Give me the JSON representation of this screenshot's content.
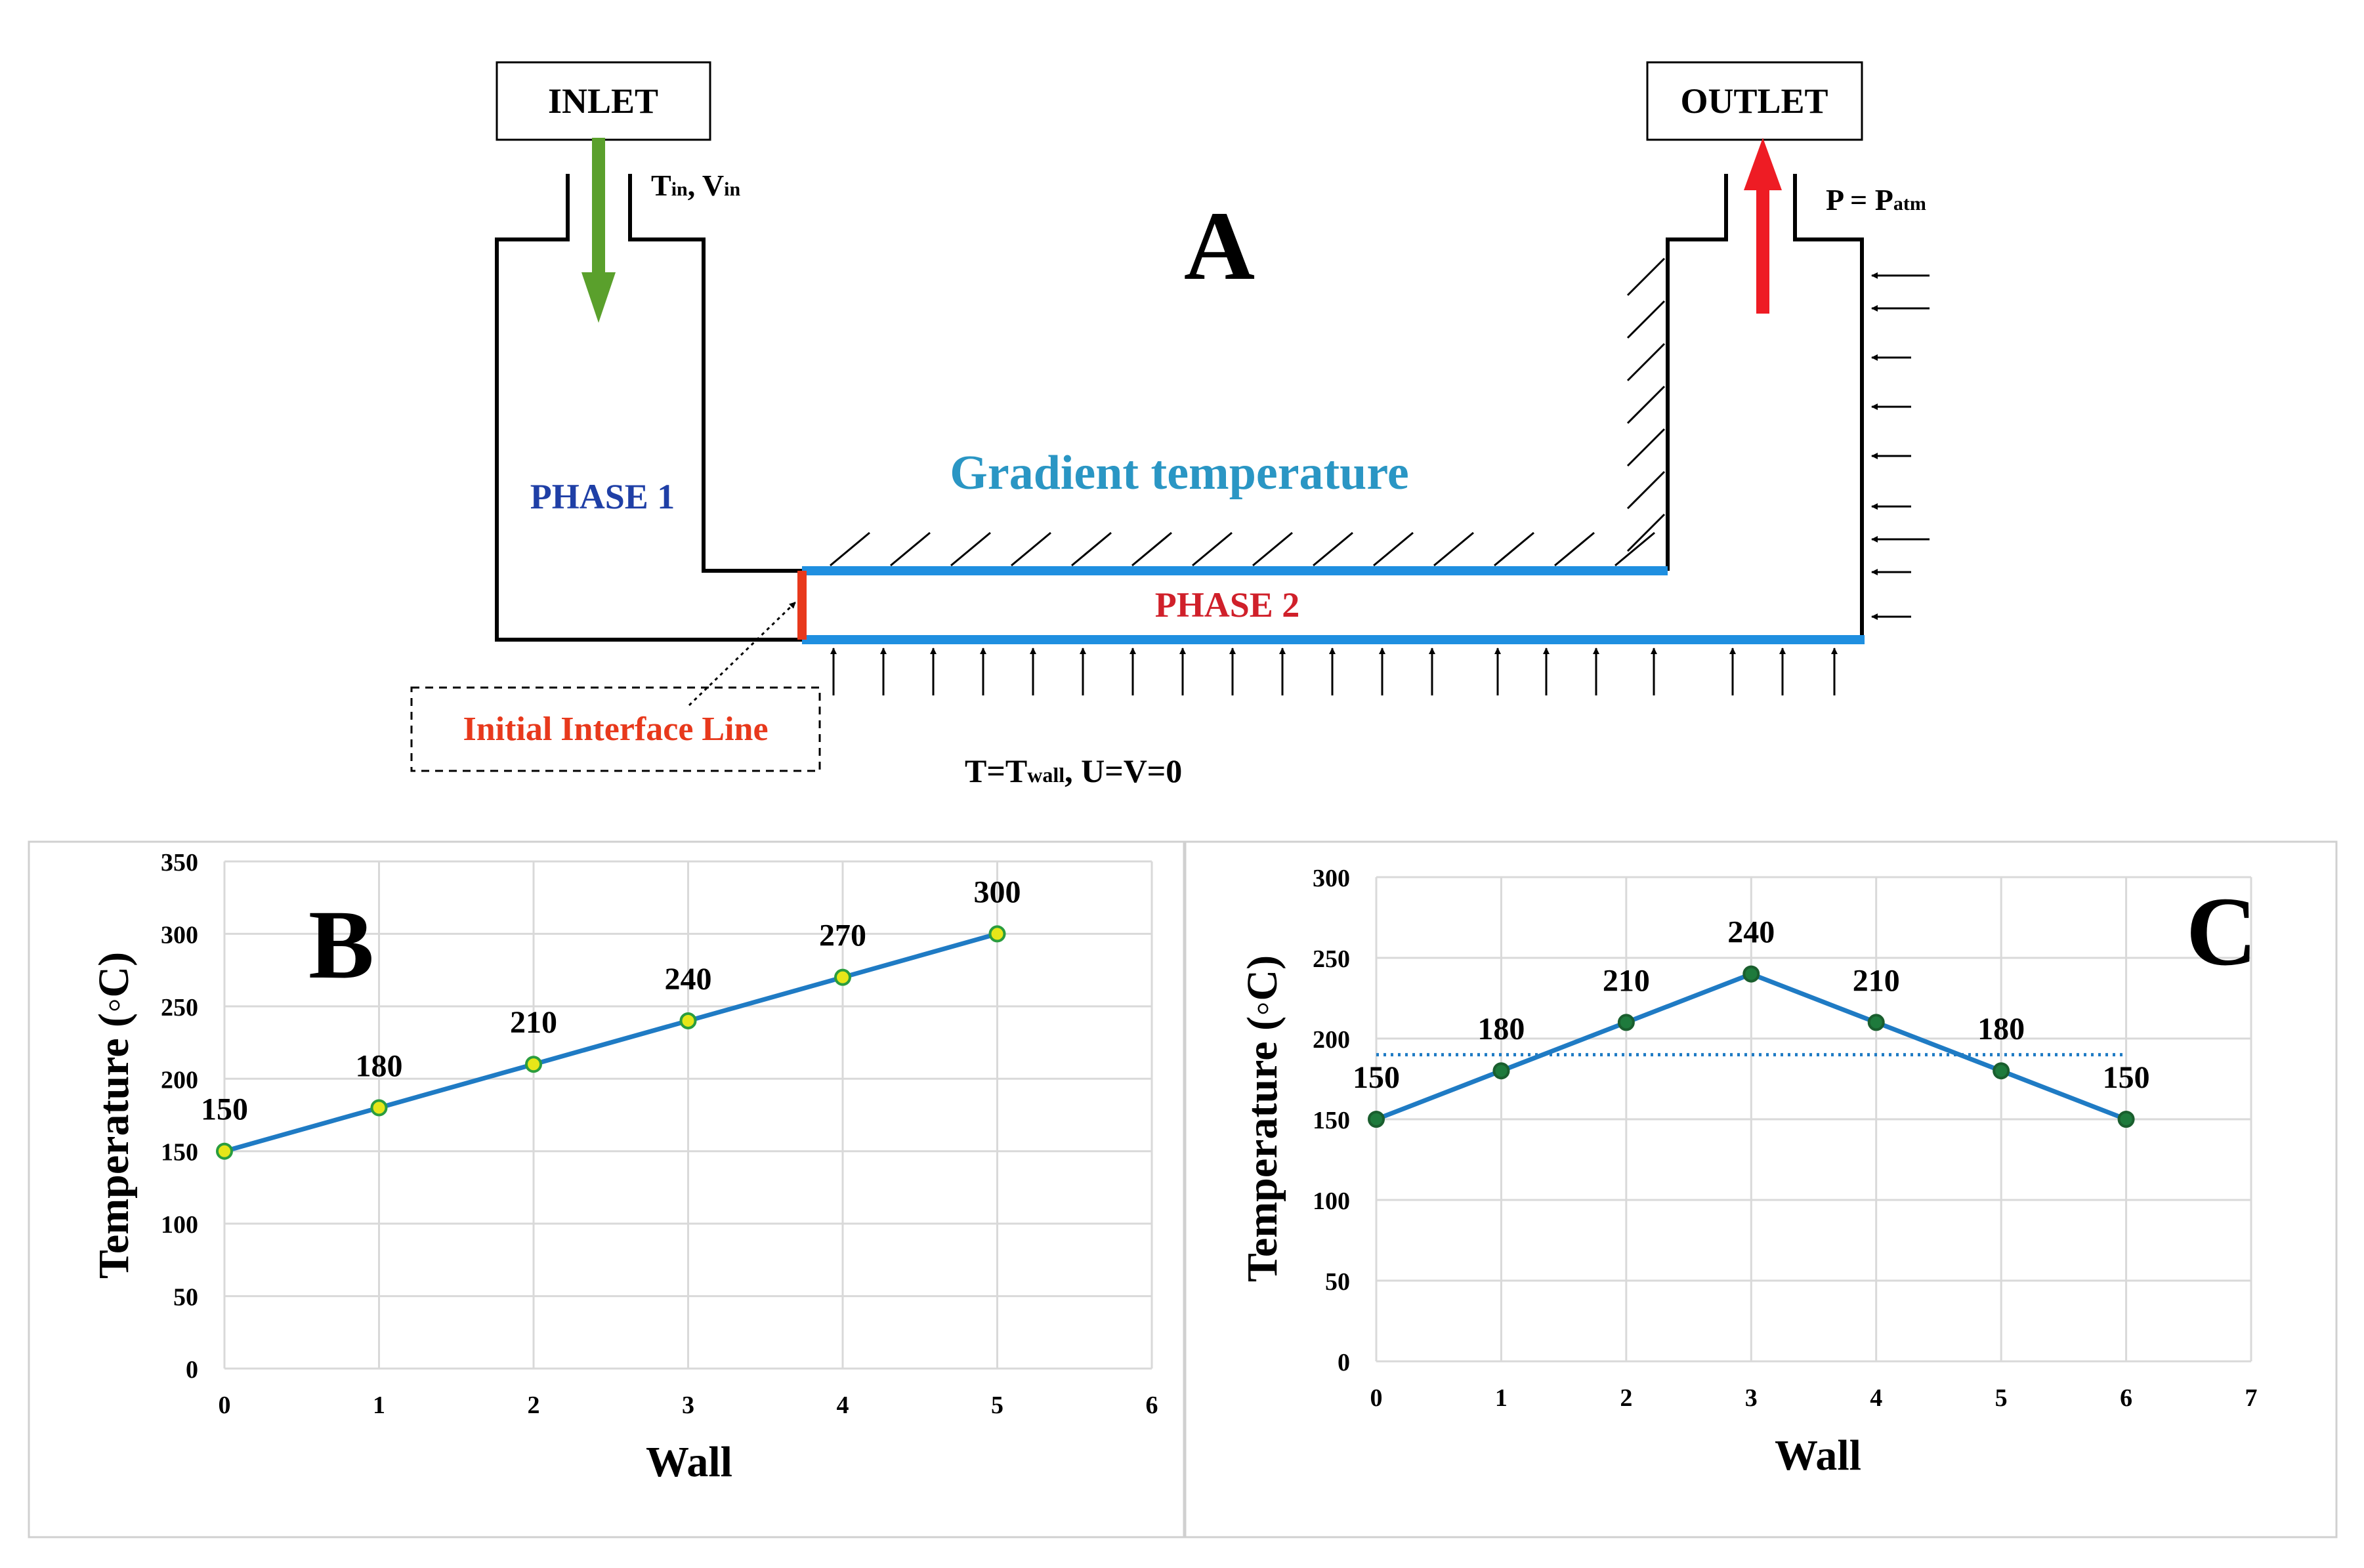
{
  "panel_a": {
    "letter": "A",
    "inlet_label": "INLET",
    "outlet_label": "OUTLET",
    "inlet_cond": {
      "t": "T",
      "t_sub": "in",
      "sep": ", V",
      "v_sub": "in"
    },
    "outlet_cond": {
      "p": "P = P",
      "p_sub": "atm"
    },
    "phase1": "PHASE 1",
    "phase2": "PHASE 2",
    "gradient": "Gradient temperature",
    "interface": "Initial Interface Line",
    "wall_cond": {
      "t": "T=T",
      "t_sub": "wall",
      "rest": ", U=V=0"
    },
    "colors": {
      "phase1": "#1f3fa6",
      "phase2": "#d0202a",
      "gradient": "#2a96c4",
      "interface": "#e8391c",
      "wall_line": "#1f8fe0",
      "inlet_arrow": "#5aa02c",
      "outlet_arrow": "#ee1c24"
    }
  },
  "chart_data": [
    {
      "panel_letter": "B",
      "type": "line",
      "xlabel": "Wall",
      "ylabel": "Temperature (◦C)",
      "x": [
        0,
        1,
        2,
        3,
        4,
        5
      ],
      "y": [
        150,
        180,
        210,
        240,
        270,
        300
      ],
      "data_labels": [
        "150",
        "180",
        "210",
        "240",
        "270",
        "300"
      ],
      "xlim": [
        0,
        6
      ],
      "ylim": [
        0,
        350
      ],
      "x_ticks": [
        "0",
        "1",
        "2",
        "3",
        "4",
        "5",
        "6"
      ],
      "y_ticks": [
        "0",
        "50",
        "100",
        "150",
        "200",
        "250",
        "300",
        "350"
      ],
      "grid": true,
      "line_color": "#1f7bc4",
      "marker_color": "#e6e619"
    },
    {
      "panel_letter": "C",
      "type": "line",
      "xlabel": "Wall",
      "ylabel": "Temperature (◦C)",
      "x": [
        0,
        1,
        2,
        3,
        4,
        5,
        6
      ],
      "y": [
        150,
        180,
        210,
        240,
        210,
        180,
        150
      ],
      "data_labels": [
        "150",
        "180",
        "210",
        "240",
        "210",
        "180",
        "150"
      ],
      "reference_line": {
        "y": 190,
        "x_range": [
          0,
          6
        ],
        "style": "dotted"
      },
      "xlim": [
        0,
        7
      ],
      "ylim": [
        0,
        300
      ],
      "x_ticks": [
        "0",
        "1",
        "2",
        "3",
        "4",
        "5",
        "6",
        "7"
      ],
      "y_ticks": [
        "0",
        "50",
        "100",
        "150",
        "200",
        "250",
        "300"
      ],
      "grid": true,
      "line_color": "#1f7bc4",
      "marker_color": "#1e7a3c"
    }
  ]
}
